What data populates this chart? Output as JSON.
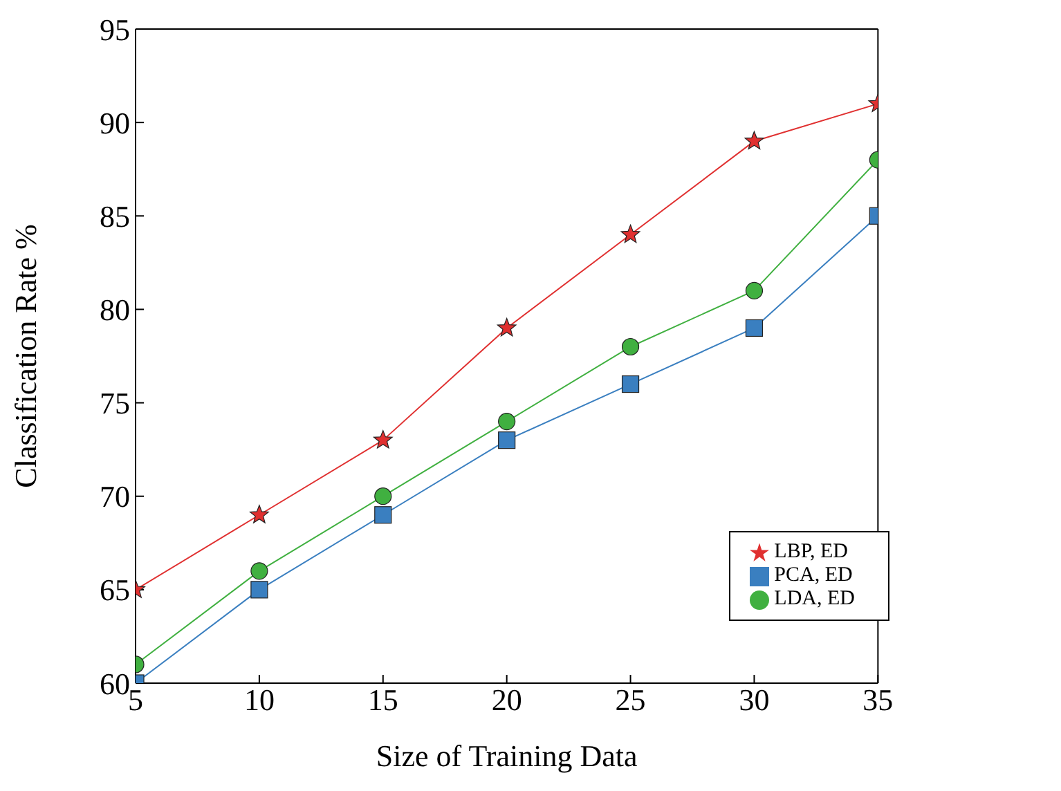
{
  "chart_data": {
    "type": "line",
    "xlabel": "Size of Training Data",
    "ylabel": "Classification Rate %",
    "x": [
      5,
      10,
      15,
      20,
      25,
      30,
      35
    ],
    "series": [
      {
        "name": "LBP, ED",
        "color": "#e03030",
        "marker": "star",
        "values": [
          65,
          69,
          73,
          79,
          84,
          89,
          91
        ]
      },
      {
        "name": "PCA, ED",
        "color": "#3a7fc0",
        "marker": "square",
        "values": [
          60,
          65,
          69,
          73,
          76,
          79,
          85
        ]
      },
      {
        "name": "LDA, ED",
        "color": "#40b040",
        "marker": "circle",
        "values": [
          61,
          66,
          70,
          74,
          78,
          81,
          88
        ]
      }
    ],
    "xlim": [
      5,
      35
    ],
    "xticks": [
      5,
      10,
      15,
      20,
      25,
      30,
      35
    ],
    "ylim": [
      60,
      95
    ],
    "yticks": [
      60,
      65,
      70,
      75,
      80,
      85,
      90,
      95
    ],
    "legend": "bottom right",
    "line_style": "solid"
  }
}
